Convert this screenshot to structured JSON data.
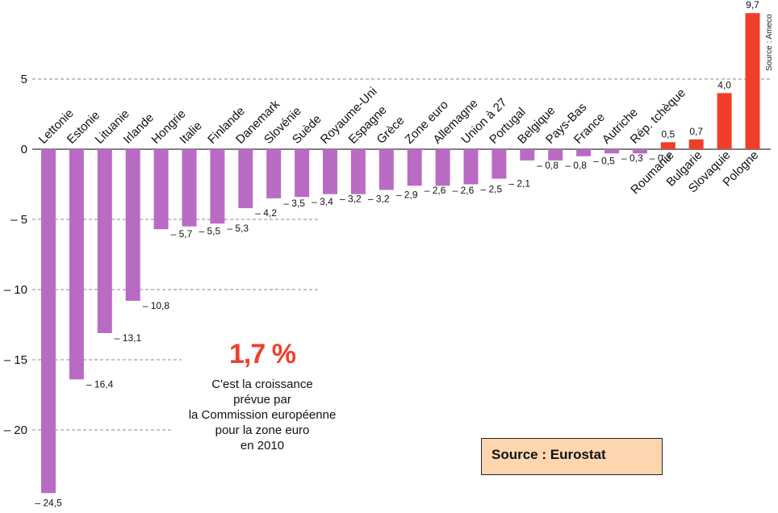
{
  "chart_data": {
    "type": "bar",
    "categories": [
      "Lettonie",
      "Estonie",
      "Lituanie",
      "Irlande",
      "Hongrie",
      "Italie",
      "Finlande",
      "Danemark",
      "Slovénie",
      "Suède",
      "Royaume-Uni",
      "Espagne",
      "Grèce",
      "Zone euro",
      "Allemagne",
      "Union à 27",
      "Portugal",
      "Belgique",
      "Pays-Bas",
      "France",
      "Autriche",
      "Rép. tchèque",
      "Roumanie",
      "Bulgarie",
      "Slovaquie",
      "Pologne"
    ],
    "values": [
      -24.5,
      -16.4,
      -13.1,
      -10.8,
      -5.7,
      -5.5,
      -5.3,
      -4.2,
      -3.5,
      -3.4,
      -3.2,
      -3.2,
      -2.9,
      -2.6,
      -2.6,
      -2.5,
      -2.1,
      -0.8,
      -0.8,
      -0.5,
      -0.3,
      -0.3,
      0.5,
      0.7,
      4.0,
      9.7
    ],
    "value_labels": [
      "– 24,5",
      "– 16,4",
      "– 13,1",
      "– 10,8",
      "– 5,7",
      "– 5,5",
      "– 5,3",
      "– 4,2",
      "– 3,5",
      "– 3,4",
      "– 3,2",
      "– 3,2",
      "– 2,9",
      "– 2,6",
      "– 2,6",
      "– 2,5",
      "– 2,1",
      "– 0,8",
      "– 0,8",
      "– 0,5",
      "– 0,3",
      "– 0,3",
      "0,5",
      "0,7",
      "4,0",
      "9,7"
    ],
    "ylim": [
      -24.5,
      9.7
    ],
    "yticks": [
      5,
      0,
      -5,
      -10,
      -15,
      -20
    ],
    "ytick_labels": [
      "5",
      "0",
      "– 5",
      "– 10",
      "– 15",
      "– 20"
    ],
    "grid": "dashed",
    "colors": {
      "negative": "#b96bc4",
      "positive": "#f03e2a",
      "zero_line": "#333333",
      "grid": "#888888"
    }
  },
  "callout": {
    "big": "1,7 %",
    "text": "C'est la croissance\nprévue par\nla Commission européenne\npour la zone euro\nen 2010"
  },
  "source_box": "Source : Eurostat",
  "side_source": "Source : Ameco"
}
